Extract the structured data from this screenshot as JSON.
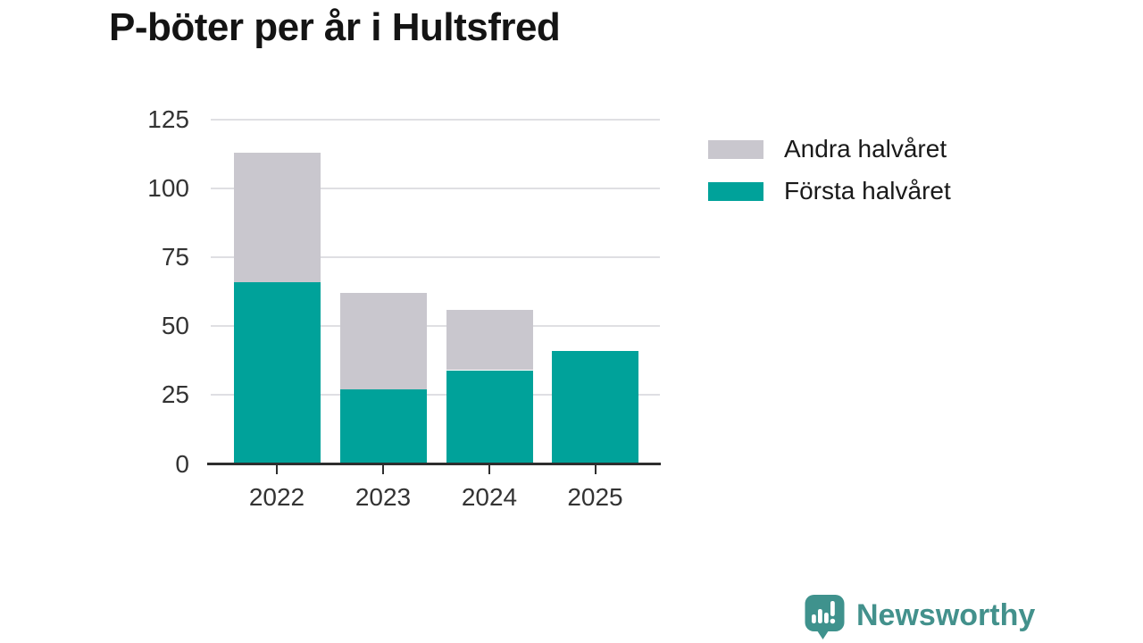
{
  "title": "P-böter per år i Hultsfred",
  "legend": {
    "items": [
      {
        "label": "Andra halvåret",
        "color": "#c9c7ce"
      },
      {
        "label": "Första halvåret",
        "color": "#00a29a"
      }
    ]
  },
  "footer": {
    "brand_name": "Newsworthy",
    "brand_color": "#43918c",
    "logo_icon": "speech-bubble-bar-chart-exclamation"
  },
  "colors": {
    "first_half": "#00a29a",
    "second_half": "#c9c7ce",
    "gridline": "#dfdfe3",
    "axis": "#2e2e2e",
    "tick_label": "#333333"
  },
  "chart_data": {
    "type": "bar",
    "stacked": true,
    "title": "P-böter per år i Hultsfred",
    "categories": [
      "2022",
      "2023",
      "2024",
      "2025"
    ],
    "series": [
      {
        "name": "Första halvåret",
        "color": "#00a29a",
        "values": [
          66,
          27,
          34,
          41
        ]
      },
      {
        "name": "Andra halvåret",
        "color": "#c9c7ce",
        "values": [
          47,
          35,
          22,
          0
        ]
      }
    ],
    "totals": [
      113,
      62,
      56,
      41
    ],
    "xlabel": "",
    "ylabel": "",
    "yticks": [
      0,
      25,
      50,
      75,
      100,
      125
    ],
    "ylim": [
      0,
      125
    ],
    "grid": true,
    "legend_position": "right"
  }
}
